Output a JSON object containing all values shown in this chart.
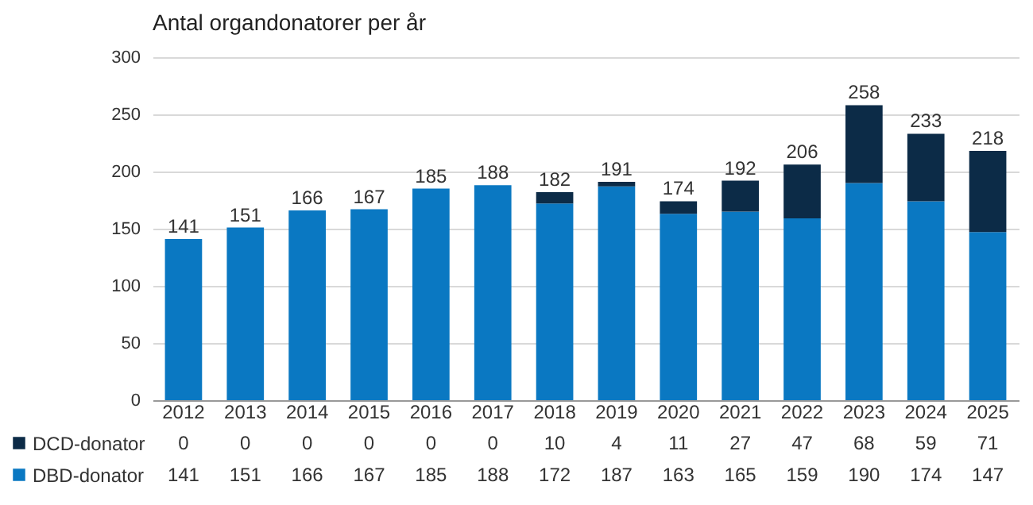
{
  "chart_data": {
    "type": "bar",
    "title": "Antal organdonatorer per år",
    "categories": [
      "2012",
      "2013",
      "2014",
      "2015",
      "2016",
      "2017",
      "2018",
      "2019",
      "2020",
      "2021",
      "2022",
      "2023",
      "2024",
      "2025"
    ],
    "stacked": true,
    "series": [
      {
        "name": "DBD-donator",
        "color": "#0a78c2",
        "values": [
          141,
          151,
          166,
          167,
          185,
          188,
          172,
          187,
          163,
          165,
          159,
          190,
          174,
          147
        ]
      },
      {
        "name": "DCD-donator",
        "color": "#0c2b47",
        "values": [
          0,
          0,
          0,
          0,
          0,
          0,
          10,
          4,
          11,
          27,
          47,
          68,
          59,
          71
        ]
      }
    ],
    "totals": [
      "141",
      "151",
      "166",
      "167",
      "185",
      "188",
      "182",
      "191",
      "174",
      "192",
      "206",
      "258",
      "233",
      "218"
    ],
    "ylim": [
      0,
      300
    ],
    "yticks": [
      0,
      50,
      100,
      150,
      200,
      250,
      300
    ],
    "grid": "y",
    "data_labels": true,
    "legend": "bottom left"
  }
}
